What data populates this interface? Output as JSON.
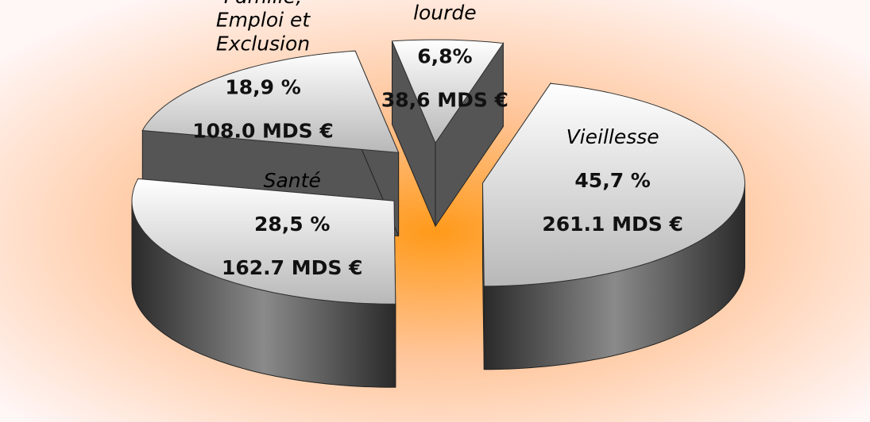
{
  "chart_data": {
    "type": "pie3d",
    "categories": [
      "Vieillesse",
      "Santé",
      "Famille, Emploi et Exclusion",
      "Prévoyance lourde"
    ],
    "values": [
      45.7,
      28.5,
      18.9,
      6.8
    ],
    "value_labels": [
      "45,7 %",
      "28,5 %",
      "18,9 %",
      "6,8%"
    ],
    "amounts": [
      261.1,
      162.7,
      108.0,
      38.6
    ],
    "amount_labels": [
      "261.1 MDS €",
      "162.7 MDS €",
      "108.0 MDS €",
      "38,6 MDS €"
    ],
    "color": "#8a8a8a"
  }
}
